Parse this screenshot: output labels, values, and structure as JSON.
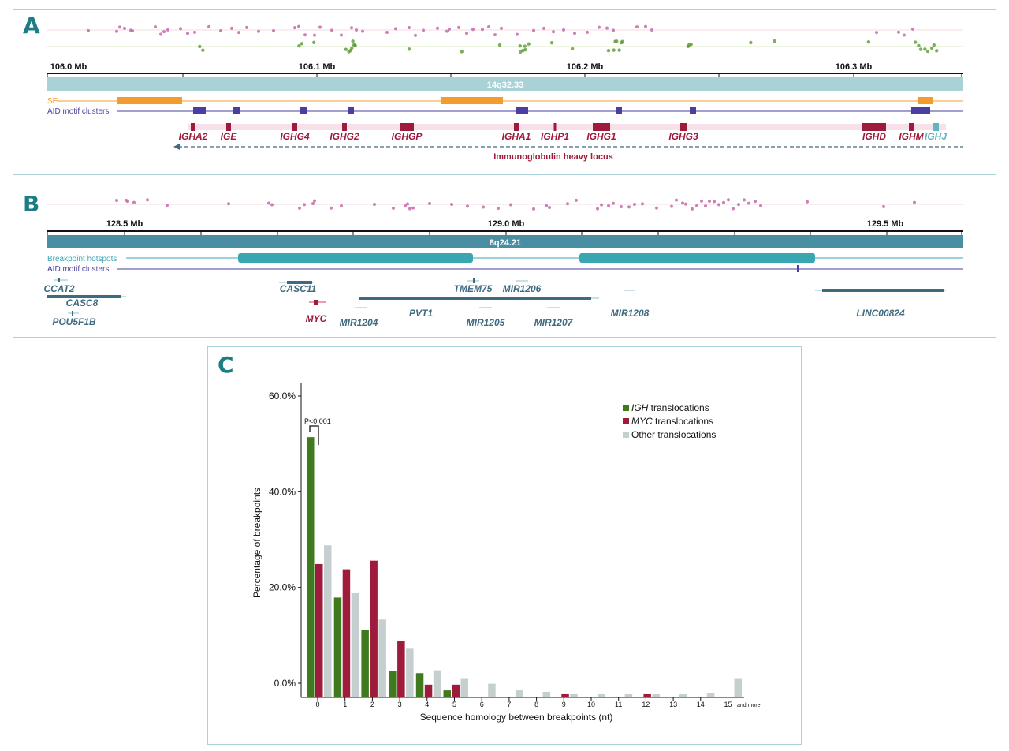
{
  "panels": {
    "a": "A",
    "b": "B",
    "c": "C"
  },
  "panel_a": {
    "ticks": [
      {
        "label": "106.0 Mb",
        "x": 87
      },
      {
        "label": "106.1 Mb",
        "x": 402
      },
      {
        "label": "106.2 Mb",
        "x": 742
      },
      {
        "label": "106.3 Mb",
        "x": 1083
      }
    ],
    "band": "14q32.33",
    "se_label": "SE",
    "aid_label": "AID motif clusters",
    "genes": [
      {
        "name": "IGHA2",
        "x": 245,
        "w": 6
      },
      {
        "name": "IGE",
        "x": 290,
        "w": 6
      },
      {
        "name": "IGHG4",
        "x": 374,
        "w": 6
      },
      {
        "name": "IGHG2",
        "x": 437,
        "w": 6
      },
      {
        "name": "IGHGP",
        "x": 516,
        "w": 18
      },
      {
        "name": "IGHA1",
        "x": 655,
        "w": 6
      },
      {
        "name": "IGHP1",
        "x": 704,
        "w": 3
      },
      {
        "name": "IGHG1",
        "x": 763,
        "w": 22
      },
      {
        "name": "IGHG3",
        "x": 867,
        "w": 8
      },
      {
        "name": "IGHD",
        "x": 1109,
        "w": 30
      },
      {
        "name": "IGHM",
        "x": 1156,
        "w": 6
      },
      {
        "name": "IGHJ",
        "x": 1187,
        "w": 8
      }
    ],
    "locus_label": "Immunoglobulin heavy locus",
    "colors": {
      "gene": "#9e1b3b",
      "ighj": "#5fb6c0",
      "se": "#f39b2d",
      "aid": "#4a3ea0",
      "band": "#a8d2d6"
    }
  },
  "panel_b": {
    "ticks": [
      {
        "label": "128.5 Mb",
        "x": 158
      },
      {
        "label": "129.0 Mb",
        "x": 642
      },
      {
        "label": "129.5 Mb",
        "x": 1123
      }
    ],
    "band": "8q24.21",
    "hotspot_label": "Breakpoint hotspots",
    "aid_label": "AID motif clusters",
    "genes": [
      {
        "name": "CCAT2",
        "x": 75,
        "y": 356
      },
      {
        "name": "CASC8",
        "x": 104,
        "y": 374
      },
      {
        "name": "POU5F1B",
        "x": 94,
        "y": 398
      },
      {
        "name": "CASC11",
        "x": 378,
        "y": 356
      },
      {
        "name": "MYC",
        "x": 401,
        "y": 394
      },
      {
        "name": "MIR1204",
        "x": 455,
        "y": 399
      },
      {
        "name": "PVT1",
        "x": 534,
        "y": 387
      },
      {
        "name": "TMEM75",
        "x": 600,
        "y": 356
      },
      {
        "name": "MIR1206",
        "x": 662,
        "y": 356
      },
      {
        "name": "MIR1205",
        "x": 616,
        "y": 399
      },
      {
        "name": "MIR1207",
        "x": 702,
        "y": 399
      },
      {
        "name": "MIR1208",
        "x": 799,
        "y": 387
      },
      {
        "name": "LINC00824",
        "x": 1117,
        "y": 387
      }
    ],
    "colors": {
      "gene": "#3f6b80",
      "myc": "#9e1b3b",
      "hotspot": "#3aa6b2",
      "band": "#4a8ea3",
      "aid": "#4a3ea0"
    }
  },
  "chart_data": {
    "type": "bar",
    "categories": [
      "0",
      "1",
      "2",
      "3",
      "4",
      "5",
      "6",
      "7",
      "8",
      "9",
      "10",
      "11",
      "12",
      "13",
      "14",
      "15"
    ],
    "extra_category_label": "and more",
    "series": [
      {
        "name": "IGH translocations",
        "values": [
          51.4,
          17.9,
          11.1,
          2.5,
          2.1,
          -1.5,
          null,
          null,
          null,
          null,
          null,
          null,
          null,
          null,
          null,
          null
        ]
      },
      {
        "name": "MYC translocations",
        "values": [
          24.9,
          23.8,
          25.6,
          8.8,
          -0.3,
          -0.3,
          null,
          null,
          null,
          -2.3,
          null,
          null,
          -2.3,
          null,
          null,
          null
        ]
      },
      {
        "name": "Other translocations",
        "values": [
          28.8,
          18.8,
          13.3,
          7.2,
          2.7,
          0.9,
          -0.1,
          -1.5,
          -1.8,
          -2.3,
          -2.3,
          -2.3,
          -2.3,
          -2.3,
          -2.0,
          0.9
        ]
      }
    ],
    "legend_italic": [
      "IGH",
      "MYC",
      "Other"
    ],
    "legend_rest": [
      " translocations",
      " translocations",
      " translocations"
    ],
    "colors": [
      "#3f7a1e",
      "#9e1b3b",
      "#c5cfcf"
    ],
    "yticks": [
      "0.0%",
      "20.0%",
      "40.0%",
      "60.0%"
    ],
    "ylim": [
      -3,
      63
    ],
    "xlabel": "Sequence homology between breakpoints (nt)",
    "ylabel": "Percentage of breakpoints",
    "annotation": "P<0.001",
    "legend_position": "top-right"
  }
}
